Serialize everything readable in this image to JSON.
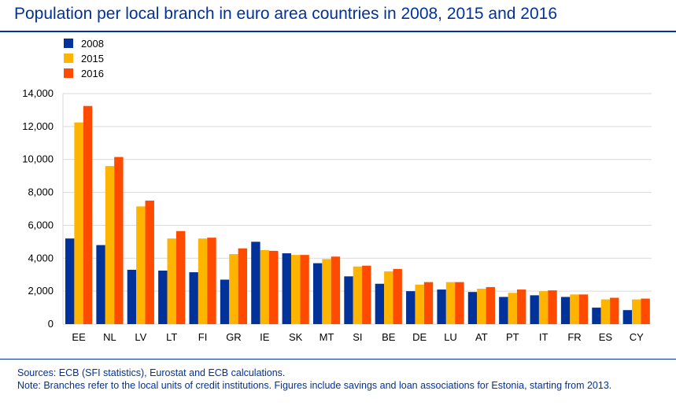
{
  "title": "Population per local branch in euro area countries in 2008, 2015 and 2016",
  "notes": {
    "sources": "Sources: ECB (SFI statistics), Eurostat and ECB calculations.",
    "note": "Note: Branches refer to the local units of credit institutions. Figures include savings and loan associations for Estonia, starting from 2013."
  },
  "chart_data": {
    "type": "bar",
    "title": "Population per local branch in euro area countries in 2008, 2015 and 2016",
    "categories": [
      "EE",
      "NL",
      "LV",
      "LT",
      "FI",
      "GR",
      "IE",
      "SK",
      "MT",
      "SI",
      "BE",
      "DE",
      "LU",
      "AT",
      "PT",
      "IT",
      "FR",
      "ES",
      "CY"
    ],
    "series": [
      {
        "name": "2008",
        "color": "#003299",
        "values": [
          5200,
          4800,
          3300,
          3250,
          3150,
          2700,
          5000,
          4300,
          3700,
          2900,
          2450,
          2000,
          2100,
          1950,
          1650,
          1750,
          1650,
          1000,
          850
        ]
      },
      {
        "name": "2015",
        "color": "#FFB400",
        "values": [
          12250,
          9600,
          7150,
          5200,
          5200,
          4250,
          4500,
          4200,
          3950,
          3500,
          3200,
          2400,
          2550,
          2150,
          1900,
          2000,
          1800,
          1500,
          1500
        ]
      },
      {
        "name": "2016",
        "color": "#FF4B00",
        "values": [
          13250,
          10150,
          7500,
          5650,
          5250,
          4600,
          4450,
          4200,
          4100,
          3550,
          3350,
          2550,
          2550,
          2250,
          2100,
          2050,
          1800,
          1600,
          1550
        ]
      }
    ],
    "ylim": [
      0,
      14000
    ],
    "yticks": [
      "0",
      "2,000",
      "4,000",
      "6,000",
      "8,000",
      "10,000",
      "12,000",
      "14,000"
    ],
    "grid": true,
    "legend": "top-left"
  }
}
